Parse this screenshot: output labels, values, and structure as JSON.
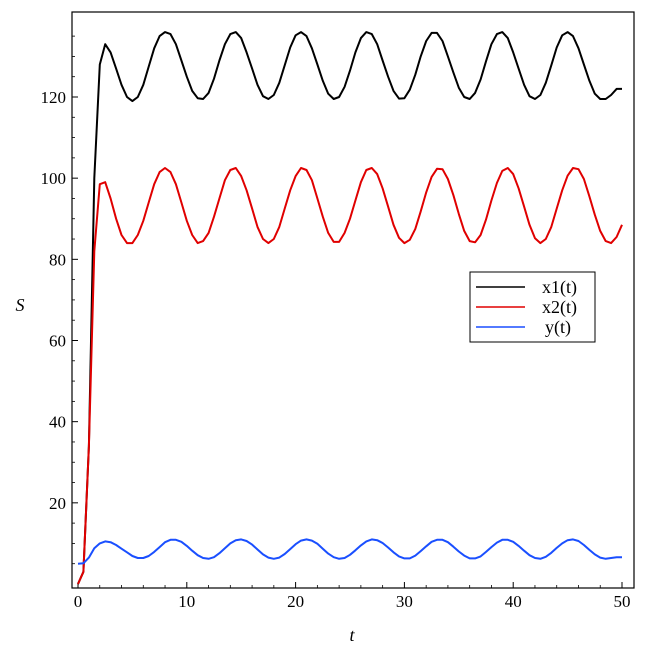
{
  "chart_data": {
    "type": "line",
    "title": "",
    "xlabel": "t",
    "ylabel": "S",
    "xlim": [
      0,
      50
    ],
    "ylim": [
      0,
      137
    ],
    "x_ticks": [
      0,
      10,
      20,
      30,
      40,
      50
    ],
    "y_ticks": [
      20,
      40,
      60,
      80,
      100,
      120
    ],
    "grid": false,
    "legend_position": "right",
    "series": [
      {
        "name": "x1(t)",
        "color": "#000000",
        "points": [
          [
            0,
            0
          ],
          [
            0.5,
            3
          ],
          [
            1,
            34
          ],
          [
            1.5,
            100
          ],
          [
            2,
            128
          ],
          [
            2.5,
            133
          ],
          [
            3,
            131
          ],
          [
            3.5,
            127
          ],
          [
            4,
            123
          ],
          [
            4.5,
            120
          ],
          [
            5,
            119
          ],
          [
            5.5,
            120
          ],
          [
            6,
            123
          ],
          [
            6.5,
            127.5
          ],
          [
            7,
            132
          ],
          [
            7.5,
            135
          ],
          [
            8,
            136
          ],
          [
            8.5,
            135.5
          ],
          [
            9,
            133
          ],
          [
            9.5,
            129
          ],
          [
            10,
            125
          ],
          [
            10.5,
            121.5
          ],
          [
            11,
            119.7
          ],
          [
            11.5,
            119.5
          ],
          [
            12,
            121
          ],
          [
            12.5,
            124.5
          ],
          [
            13,
            129
          ],
          [
            13.5,
            133
          ],
          [
            14,
            135.5
          ],
          [
            14.5,
            136
          ],
          [
            15,
            134.5
          ],
          [
            15.5,
            131
          ],
          [
            16,
            127
          ],
          [
            16.5,
            123
          ],
          [
            17,
            120.2
          ],
          [
            17.5,
            119.5
          ],
          [
            18,
            120.5
          ],
          [
            18.5,
            123.5
          ],
          [
            19,
            127.8
          ],
          [
            19.5,
            132.2
          ],
          [
            20,
            135.2
          ],
          [
            20.5,
            136
          ],
          [
            21,
            135
          ],
          [
            21.5,
            132
          ],
          [
            22,
            128
          ],
          [
            22.5,
            124
          ],
          [
            23,
            120.8
          ],
          [
            23.5,
            119.5
          ],
          [
            24,
            120
          ],
          [
            24.5,
            122.5
          ],
          [
            25,
            126.5
          ],
          [
            25.5,
            131
          ],
          [
            26,
            134.5
          ],
          [
            26.5,
            136
          ],
          [
            27,
            135.5
          ],
          [
            27.5,
            133
          ],
          [
            28,
            129
          ],
          [
            28.5,
            125
          ],
          [
            29,
            121.5
          ],
          [
            29.5,
            119.6
          ],
          [
            30,
            119.7
          ],
          [
            30.5,
            121.8
          ],
          [
            31,
            125.5
          ],
          [
            31.5,
            130
          ],
          [
            32,
            133.8
          ],
          [
            32.5,
            135.8
          ],
          [
            33,
            135.8
          ],
          [
            33.5,
            133.8
          ],
          [
            34,
            130
          ],
          [
            34.5,
            126
          ],
          [
            35,
            122.3
          ],
          [
            35.5,
            120
          ],
          [
            36,
            119.5
          ],
          [
            36.5,
            121
          ],
          [
            37,
            124.3
          ],
          [
            37.5,
            128.8
          ],
          [
            38,
            133
          ],
          [
            38.5,
            135.5
          ],
          [
            39,
            136
          ],
          [
            39.5,
            134.5
          ],
          [
            40,
            131
          ],
          [
            40.5,
            127
          ],
          [
            41,
            123
          ],
          [
            41.5,
            120.2
          ],
          [
            42,
            119.5
          ],
          [
            42.5,
            120.5
          ],
          [
            43,
            123.5
          ],
          [
            43.5,
            127.8
          ],
          [
            44,
            132.2
          ],
          [
            44.5,
            135.2
          ],
          [
            45,
            136
          ],
          [
            45.5,
            135
          ],
          [
            46,
            132
          ],
          [
            46.5,
            128
          ],
          [
            47,
            124
          ],
          [
            47.5,
            120.8
          ],
          [
            48,
            119.5
          ],
          [
            48.5,
            119.5
          ],
          [
            49,
            120.5
          ],
          [
            49.5,
            122
          ],
          [
            50,
            122
          ]
        ]
      },
      {
        "name": "x2(t)",
        "color": "#e00000",
        "points": [
          [
            0,
            0
          ],
          [
            0.5,
            3
          ],
          [
            1,
            34
          ],
          [
            1.5,
            82
          ],
          [
            2,
            98.5
          ],
          [
            2.5,
            99
          ],
          [
            3,
            95
          ],
          [
            3.5,
            90
          ],
          [
            4,
            86
          ],
          [
            4.5,
            84
          ],
          [
            5,
            84
          ],
          [
            5.5,
            86
          ],
          [
            6,
            89.5
          ],
          [
            6.5,
            94
          ],
          [
            7,
            98.5
          ],
          [
            7.5,
            101.5
          ],
          [
            8,
            102.5
          ],
          [
            8.5,
            101.5
          ],
          [
            9,
            98.5
          ],
          [
            9.5,
            94
          ],
          [
            10,
            89.5
          ],
          [
            10.5,
            86
          ],
          [
            11,
            84
          ],
          [
            11.5,
            84.5
          ],
          [
            12,
            86.5
          ],
          [
            12.5,
            90.5
          ],
          [
            13,
            95
          ],
          [
            13.5,
            99.5
          ],
          [
            14,
            102
          ],
          [
            14.5,
            102.5
          ],
          [
            15,
            100.5
          ],
          [
            15.5,
            97
          ],
          [
            16,
            92.5
          ],
          [
            16.5,
            88
          ],
          [
            17,
            85
          ],
          [
            17.5,
            84
          ],
          [
            18,
            85
          ],
          [
            18.5,
            88
          ],
          [
            19,
            92.5
          ],
          [
            19.5,
            97
          ],
          [
            20,
            100.5
          ],
          [
            20.5,
            102.5
          ],
          [
            21,
            102
          ],
          [
            21.5,
            99.5
          ],
          [
            22,
            95
          ],
          [
            22.5,
            90.5
          ],
          [
            23,
            86.5
          ],
          [
            23.5,
            84.3
          ],
          [
            24,
            84.3
          ],
          [
            24.5,
            86.5
          ],
          [
            25,
            90
          ],
          [
            25.5,
            94.5
          ],
          [
            26,
            99
          ],
          [
            26.5,
            102
          ],
          [
            27,
            102.5
          ],
          [
            27.5,
            101
          ],
          [
            28,
            97.5
          ],
          [
            28.5,
            93
          ],
          [
            29,
            88.5
          ],
          [
            29.5,
            85.3
          ],
          [
            30,
            84
          ],
          [
            30.5,
            84.8
          ],
          [
            31,
            87.5
          ],
          [
            31.5,
            91.8
          ],
          [
            32,
            96.5
          ],
          [
            32.5,
            100.3
          ],
          [
            33,
            102.3
          ],
          [
            33.5,
            102.2
          ],
          [
            34,
            99.8
          ],
          [
            34.5,
            95.8
          ],
          [
            35,
            91.2
          ],
          [
            35.5,
            87
          ],
          [
            36,
            84.5
          ],
          [
            36.5,
            84.2
          ],
          [
            37,
            86
          ],
          [
            37.5,
            89.8
          ],
          [
            38,
            94.5
          ],
          [
            38.5,
            98.8
          ],
          [
            39,
            101.8
          ],
          [
            39.5,
            102.5
          ],
          [
            40,
            101
          ],
          [
            40.5,
            97.5
          ],
          [
            41,
            93
          ],
          [
            41.5,
            88.5
          ],
          [
            42,
            85.2
          ],
          [
            42.5,
            84
          ],
          [
            43,
            85
          ],
          [
            43.5,
            88
          ],
          [
            44,
            92.5
          ],
          [
            44.5,
            97
          ],
          [
            45,
            100.6
          ],
          [
            45.5,
            102.5
          ],
          [
            46,
            102.2
          ],
          [
            46.5,
            99.8
          ],
          [
            47,
            95.5
          ],
          [
            47.5,
            91
          ],
          [
            48,
            87
          ],
          [
            48.5,
            84.5
          ],
          [
            49,
            84
          ],
          [
            49.5,
            85.5
          ],
          [
            50,
            88.5
          ]
        ]
      },
      {
        "name": "y(t)",
        "color": "#1a4fff",
        "points": [
          [
            0,
            5
          ],
          [
            0.5,
            5.1
          ],
          [
            1,
            6.5
          ],
          [
            1.5,
            8.8
          ],
          [
            2,
            10
          ],
          [
            2.5,
            10.5
          ],
          [
            3,
            10.3
          ],
          [
            3.5,
            9.6
          ],
          [
            4,
            8.7
          ],
          [
            4.5,
            7.8
          ],
          [
            5,
            6.9
          ],
          [
            5.5,
            6.4
          ],
          [
            6,
            6.4
          ],
          [
            6.5,
            6.9
          ],
          [
            7,
            7.9
          ],
          [
            7.5,
            9.1
          ],
          [
            8,
            10.3
          ],
          [
            8.5,
            10.9
          ],
          [
            9,
            10.9
          ],
          [
            9.5,
            10.4
          ],
          [
            10,
            9.4
          ],
          [
            10.5,
            8.2
          ],
          [
            11,
            7.1
          ],
          [
            11.5,
            6.4
          ],
          [
            12,
            6.2
          ],
          [
            12.5,
            6.6
          ],
          [
            13,
            7.6
          ],
          [
            13.5,
            8.8
          ],
          [
            14,
            10
          ],
          [
            14.5,
            10.8
          ],
          [
            15,
            11
          ],
          [
            15.5,
            10.6
          ],
          [
            16,
            9.7
          ],
          [
            16.5,
            8.5
          ],
          [
            17,
            7.3
          ],
          [
            17.5,
            6.5
          ],
          [
            18,
            6.2
          ],
          [
            18.5,
            6.5
          ],
          [
            19,
            7.4
          ],
          [
            19.5,
            8.6
          ],
          [
            20,
            9.8
          ],
          [
            20.5,
            10.7
          ],
          [
            21,
            11
          ],
          [
            21.5,
            10.7
          ],
          [
            22,
            9.9
          ],
          [
            22.5,
            8.7
          ],
          [
            23,
            7.5
          ],
          [
            23.5,
            6.6
          ],
          [
            24,
            6.2
          ],
          [
            24.5,
            6.4
          ],
          [
            25,
            7.2
          ],
          [
            25.5,
            8.3
          ],
          [
            26,
            9.5
          ],
          [
            26.5,
            10.5
          ],
          [
            27,
            11
          ],
          [
            27.5,
            10.8
          ],
          [
            28,
            10.1
          ],
          [
            28.5,
            9
          ],
          [
            29,
            7.8
          ],
          [
            29.5,
            6.8
          ],
          [
            30,
            6.3
          ],
          [
            30.5,
            6.3
          ],
          [
            31,
            7
          ],
          [
            31.5,
            8.1
          ],
          [
            32,
            9.3
          ],
          [
            32.5,
            10.4
          ],
          [
            33,
            10.9
          ],
          [
            33.5,
            10.9
          ],
          [
            34,
            10.3
          ],
          [
            34.5,
            9.2
          ],
          [
            35,
            8
          ],
          [
            35.5,
            7
          ],
          [
            36,
            6.3
          ],
          [
            36.5,
            6.3
          ],
          [
            37,
            6.8
          ],
          [
            37.5,
            7.9
          ],
          [
            38,
            9.1
          ],
          [
            38.5,
            10.2
          ],
          [
            39,
            10.9
          ],
          [
            39.5,
            10.9
          ],
          [
            40,
            10.4
          ],
          [
            40.5,
            9.4
          ],
          [
            41,
            8.2
          ],
          [
            41.5,
            7.1
          ],
          [
            42,
            6.4
          ],
          [
            42.5,
            6.2
          ],
          [
            43,
            6.7
          ],
          [
            43.5,
            7.7
          ],
          [
            44,
            8.9
          ],
          [
            44.5,
            10
          ],
          [
            45,
            10.8
          ],
          [
            45.5,
            11
          ],
          [
            46,
            10.6
          ],
          [
            46.5,
            9.6
          ],
          [
            47,
            8.4
          ],
          [
            47.5,
            7.3
          ],
          [
            48,
            6.5
          ],
          [
            48.5,
            6.2
          ],
          [
            49,
            6.4
          ],
          [
            49.5,
            6.6
          ],
          [
            50,
            6.6
          ]
        ]
      }
    ]
  }
}
